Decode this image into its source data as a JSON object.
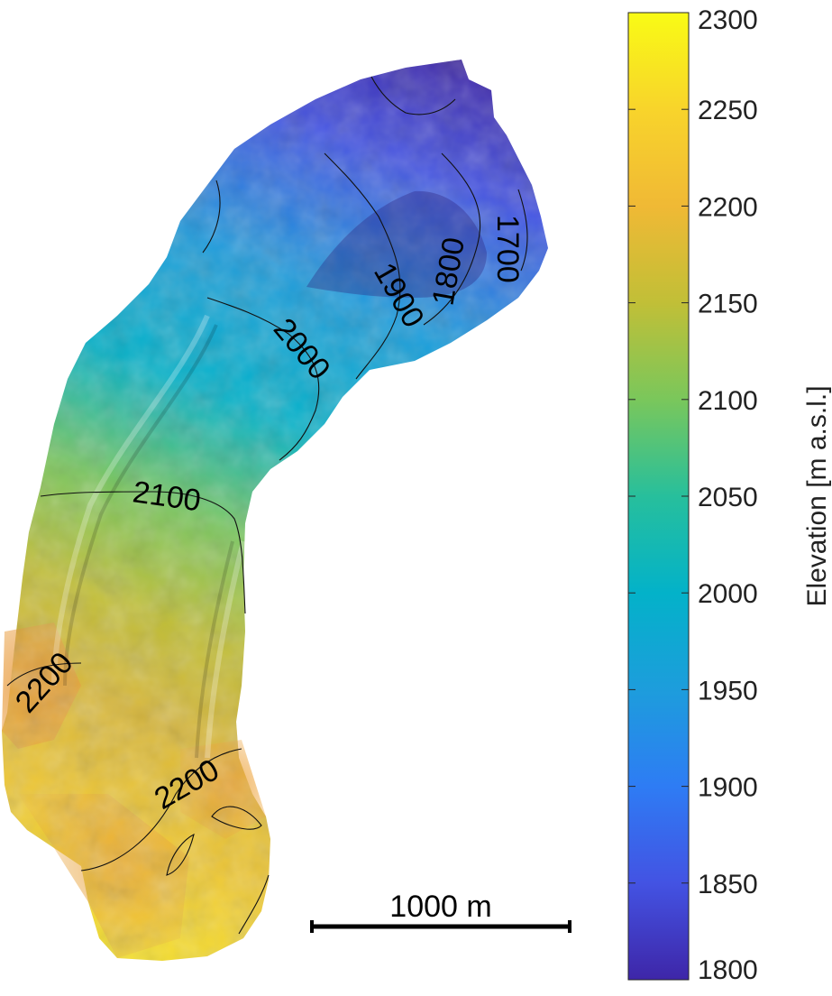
{
  "colorbar": {
    "title": "Elevation [m a.s.l.]",
    "min": 1800,
    "max": 2300,
    "ticks": [
      1800,
      1850,
      1900,
      1950,
      2000,
      2050,
      2100,
      2150,
      2200,
      2250,
      2300
    ],
    "tick_labels": [
      "1800",
      "1850",
      "1900",
      "1950",
      "2000",
      "2050",
      "2100",
      "2150",
      "2200",
      "2250",
      "2300"
    ],
    "colormap": [
      "#3e26a8",
      "#4353e3",
      "#2e7cf4",
      "#1d9ddc",
      "#03b2c9",
      "#27bf9c",
      "#7ac75b",
      "#c1bf37",
      "#f0b935",
      "#f8d42b",
      "#f9fb15"
    ]
  },
  "contours": {
    "labels": [
      {
        "text": "1700",
        "elevation": 1700
      },
      {
        "text": "1800",
        "elevation": 1800
      },
      {
        "text": "1900",
        "elevation": 1900
      },
      {
        "text": "2000",
        "elevation": 2000
      },
      {
        "text": "2100",
        "elevation": 2100
      },
      {
        "text": "2200",
        "elevation": 2200
      },
      {
        "text": "2200",
        "elevation": 2200
      }
    ]
  },
  "scale_bar": {
    "label": "1000 m",
    "length_m": 1000
  }
}
